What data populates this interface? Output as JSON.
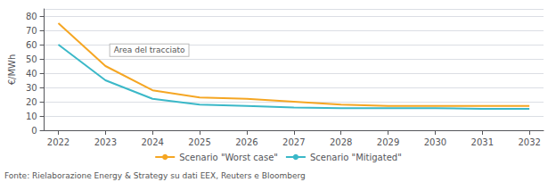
{
  "chart_data": {
    "type": "line",
    "x": [
      2022,
      2023,
      2024,
      2025,
      2026,
      2027,
      2028,
      2029,
      2030,
      2031,
      2032
    ],
    "series": [
      {
        "name": "Scenario \"Worst case\"",
        "color": "#F5A623",
        "values": [
          75,
          45,
          28,
          23,
          22,
          20,
          18,
          17,
          17,
          17,
          17
        ]
      },
      {
        "name": "Scenario \"Mitigated\"",
        "color": "#3BB8C8",
        "values": [
          60,
          35,
          22,
          18,
          17,
          16,
          15.5,
          15.5,
          15.5,
          15,
          15
        ]
      }
    ],
    "ylabel": "€/MWh",
    "xlim": [
      2021.7,
      2032.3
    ],
    "xticks": [
      2022,
      2023,
      2024,
      2025,
      2026,
      2027,
      2028,
      2029,
      2030,
      2031,
      2032
    ],
    "ylim": [
      0,
      85
    ],
    "yticks": [
      0,
      10,
      20,
      30,
      40,
      50,
      60,
      70,
      80
    ],
    "grid": true,
    "legend": "bottom",
    "annotations": [
      {
        "text": "Area del tracciato",
        "x": 2023.1,
        "y": 52
      }
    ],
    "footnote": "Fonte: Rielaborazione Energy & Strategy su dati EEX, Reuters e Bloomberg"
  }
}
